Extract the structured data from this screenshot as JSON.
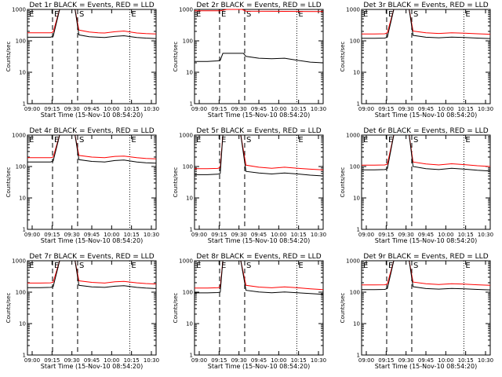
{
  "chart_data": {
    "type": "line",
    "xlabel": "Start Time (15-Nov-10 08:54:20)",
    "ylabel": "Counts/sec",
    "y_scale": "log",
    "ylim": [
      1,
      1000
    ],
    "y_ticks": [
      1,
      10,
      100,
      1000
    ],
    "y_tick_labels": [
      "1",
      "10",
      "100",
      "1000"
    ],
    "x_tick_labels": [
      "09:00",
      "09:15",
      "09:30",
      "09:45",
      "10:00",
      "10:15",
      "10:30"
    ],
    "marker_labels": [
      "E",
      "S",
      "E"
    ],
    "series_colors": {
      "events": "#000000",
      "lld": "#ff0000"
    },
    "panels": [
      {
        "title": "Det 1r BLACK = Events, RED = LLD",
        "events": {
          "x": [
            0,
            0.1,
            0.18,
            0.2,
            0.25,
            0.37,
            0.4,
            0.48,
            0.55,
            0.6,
            0.68,
            0.75,
            0.85,
            0.92,
            1
          ],
          "y": [
            130,
            130,
            130,
            140,
            1000,
            1000,
            155,
            135,
            130,
            128,
            140,
            145,
            128,
            122,
            118
          ]
        },
        "lld": {
          "x": [
            0,
            0.1,
            0.18,
            0.2,
            0.25,
            0.37,
            0.4,
            0.48,
            0.55,
            0.6,
            0.68,
            0.75,
            0.85,
            0.92,
            1
          ],
          "y": [
            180,
            180,
            180,
            190,
            1000,
            1000,
            220,
            190,
            180,
            178,
            195,
            205,
            178,
            170,
            165
          ]
        }
      },
      {
        "title": "Det 2r BLACK = Events, RED = LLD",
        "events": {
          "x": [
            0,
            0.1,
            0.18,
            0.2,
            0.22,
            0.38,
            0.4,
            0.5,
            0.6,
            0.7,
            0.8,
            0.9,
            1
          ],
          "y": [
            22,
            22,
            23,
            24,
            40,
            40,
            32,
            28,
            27,
            28,
            24,
            21,
            20
          ]
        },
        "lld": {
          "x": [
            0,
            0.2,
            0.25,
            0.37,
            0.4,
            0.6,
            0.8,
            1
          ],
          "y": [
            900,
            900,
            1000,
            1000,
            880,
            870,
            860,
            850
          ]
        }
      },
      {
        "title": "Det 3r BLACK = Events, RED = LLD",
        "events": {
          "x": [
            0,
            0.1,
            0.18,
            0.2,
            0.25,
            0.37,
            0.4,
            0.5,
            0.6,
            0.7,
            0.8,
            0.9,
            1
          ],
          "y": [
            120,
            120,
            122,
            130,
            1000,
            1000,
            150,
            130,
            125,
            132,
            128,
            122,
            118
          ]
        },
        "lld": {
          "x": [
            0,
            0.1,
            0.18,
            0.2,
            0.25,
            0.37,
            0.4,
            0.5,
            0.6,
            0.7,
            0.8,
            0.9,
            1
          ],
          "y": [
            165,
            165,
            168,
            180,
            1000,
            1000,
            205,
            180,
            172,
            180,
            175,
            168,
            162
          ]
        }
      },
      {
        "title": "Det 4r BLACK = Events, RED = LLD",
        "events": {
          "x": [
            0,
            0.1,
            0.18,
            0.2,
            0.25,
            0.37,
            0.4,
            0.5,
            0.6,
            0.68,
            0.75,
            0.85,
            0.92,
            1
          ],
          "y": [
            140,
            140,
            140,
            150,
            1000,
            1000,
            165,
            145,
            140,
            155,
            160,
            140,
            132,
            128
          ]
        },
        "lld": {
          "x": [
            0,
            0.1,
            0.18,
            0.2,
            0.25,
            0.37,
            0.4,
            0.5,
            0.6,
            0.68,
            0.75,
            0.85,
            0.92,
            1
          ],
          "y": [
            190,
            190,
            190,
            200,
            1000,
            1000,
            225,
            200,
            190,
            210,
            215,
            190,
            180,
            175
          ]
        }
      },
      {
        "title": "Det 5r BLACK = Events, RED = LLD",
        "events": {
          "x": [
            0,
            0.1,
            0.18,
            0.2,
            0.22,
            0.36,
            0.4,
            0.5,
            0.6,
            0.7,
            0.8,
            0.9,
            1
          ],
          "y": [
            55,
            55,
            57,
            60,
            1000,
            1000,
            70,
            62,
            58,
            62,
            58,
            53,
            50
          ]
        },
        "lld": {
          "x": [
            0,
            0.1,
            0.18,
            0.2,
            0.22,
            0.36,
            0.4,
            0.5,
            0.6,
            0.7,
            0.8,
            0.9,
            1
          ],
          "y": [
            85,
            85,
            87,
            92,
            1000,
            1000,
            110,
            95,
            88,
            95,
            88,
            82,
            78
          ]
        }
      },
      {
        "title": "Det 6r BLACK = Events, RED = LLD",
        "events": {
          "x": [
            0,
            0.1,
            0.18,
            0.2,
            0.25,
            0.37,
            0.4,
            0.5,
            0.6,
            0.7,
            0.8,
            0.9,
            1
          ],
          "y": [
            78,
            78,
            80,
            85,
            1000,
            1000,
            100,
            85,
            80,
            88,
            82,
            76,
            72
          ]
        },
        "lld": {
          "x": [
            0,
            0.1,
            0.18,
            0.2,
            0.25,
            0.37,
            0.4,
            0.5,
            0.6,
            0.7,
            0.8,
            0.9,
            1
          ],
          "y": [
            110,
            110,
            112,
            118,
            1000,
            1000,
            140,
            120,
            112,
            122,
            115,
            106,
            100
          ]
        }
      },
      {
        "title": "Det 7r BLACK = Events, RED = LLD",
        "events": {
          "x": [
            0,
            0.1,
            0.18,
            0.2,
            0.25,
            0.37,
            0.4,
            0.5,
            0.6,
            0.68,
            0.75,
            0.85,
            0.92,
            1
          ],
          "y": [
            140,
            140,
            142,
            150,
            1000,
            1000,
            165,
            148,
            142,
            155,
            160,
            142,
            135,
            130
          ]
        },
        "lld": {
          "x": [
            0,
            0.1,
            0.18,
            0.2,
            0.25,
            0.37,
            0.4,
            0.5,
            0.6,
            0.68,
            0.75,
            0.85,
            0.92,
            1
          ],
          "y": [
            195,
            195,
            198,
            208,
            1000,
            1000,
            230,
            205,
            195,
            215,
            220,
            198,
            188,
            182
          ]
        }
      },
      {
        "title": "Det 8r BLACK = Events, RED = LLD",
        "events": {
          "x": [
            0,
            0.1,
            0.18,
            0.2,
            0.22,
            0.36,
            0.4,
            0.5,
            0.6,
            0.7,
            0.8,
            0.9,
            1
          ],
          "y": [
            95,
            95,
            97,
            100,
            1000,
            1000,
            115,
            102,
            96,
            102,
            96,
            90,
            85
          ]
        },
        "lld": {
          "x": [
            0,
            0.1,
            0.18,
            0.2,
            0.22,
            0.36,
            0.4,
            0.5,
            0.6,
            0.7,
            0.8,
            0.9,
            1
          ],
          "y": [
            135,
            135,
            138,
            145,
            1000,
            1000,
            165,
            145,
            138,
            148,
            138,
            128,
            120
          ]
        }
      },
      {
        "title": "Det 9r BLACK = Events, RED = LLD",
        "events": {
          "x": [
            0,
            0.1,
            0.18,
            0.2,
            0.25,
            0.37,
            0.4,
            0.5,
            0.6,
            0.7,
            0.8,
            0.9,
            1
          ],
          "y": [
            120,
            120,
            122,
            130,
            1000,
            1000,
            150,
            130,
            125,
            132,
            128,
            122,
            118
          ]
        },
        "lld": {
          "x": [
            0,
            0.1,
            0.18,
            0.2,
            0.25,
            0.37,
            0.4,
            0.5,
            0.6,
            0.7,
            0.8,
            0.9,
            1
          ],
          "y": [
            170,
            170,
            172,
            182,
            1000,
            1000,
            210,
            185,
            176,
            186,
            180,
            172,
            165
          ]
        }
      }
    ]
  }
}
